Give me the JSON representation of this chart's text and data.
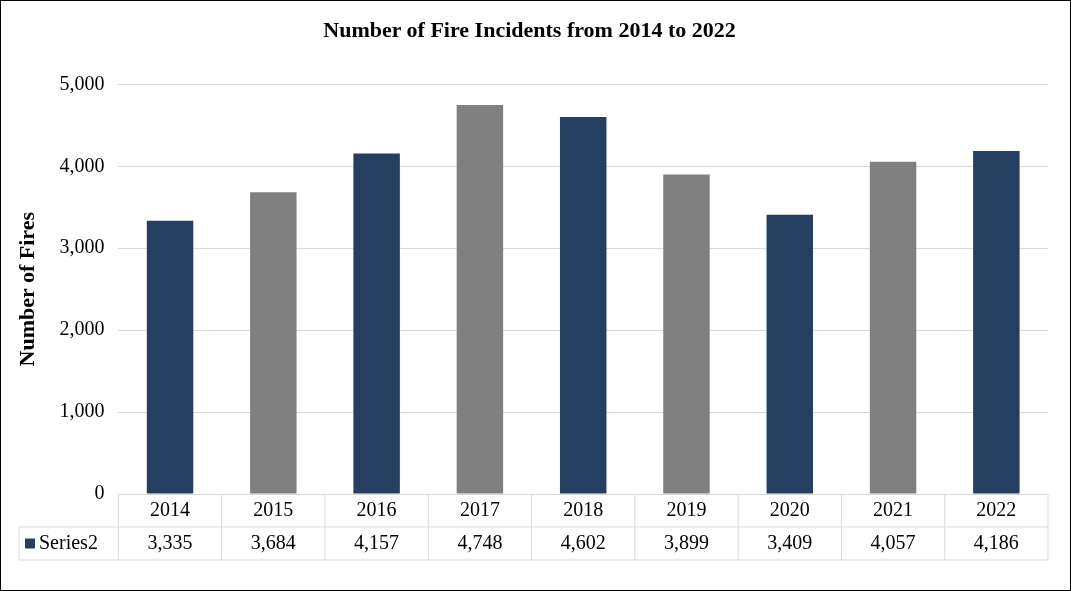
{
  "chart_data": {
    "type": "bar",
    "title": "Number of Fire Incidents from 2014 to 2022",
    "ylabel": "Number of Fires",
    "categories": [
      "2014",
      "2015",
      "2016",
      "2017",
      "2018",
      "2019",
      "2020",
      "2021",
      "2022"
    ],
    "series": [
      {
        "name": "Series2",
        "color": "#243f60",
        "colors": [
          "#243f60",
          "#808080",
          "#243f60",
          "#808080",
          "#243f60",
          "#808080",
          "#243f60",
          "#808080",
          "#243f60"
        ],
        "values": [
          3335,
          3684,
          4157,
          4748,
          4602,
          3899,
          3409,
          4057,
          4186
        ],
        "value_labels": [
          "3,335",
          "3,684",
          "4,157",
          "4,748",
          "4,602",
          "3,899",
          "3,409",
          "4,057",
          "4,186"
        ]
      }
    ],
    "ylim": [
      0,
      5000
    ],
    "yticks": [
      {
        "value": 0,
        "label": "0"
      },
      {
        "value": 1000,
        "label": "1,000"
      },
      {
        "value": 2000,
        "label": "2,000"
      },
      {
        "value": 3000,
        "label": "3,000"
      },
      {
        "value": 4000,
        "label": "4,000"
      },
      {
        "value": 5000,
        "label": "5,000"
      }
    ],
    "grid": "y",
    "legend": "bottom"
  }
}
